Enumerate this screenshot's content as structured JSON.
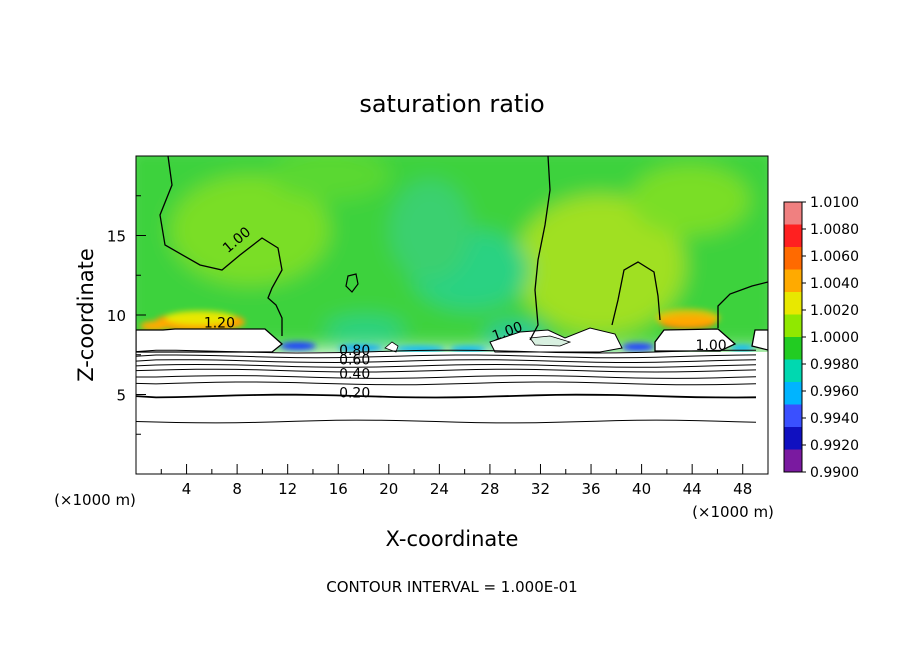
{
  "chart_data": {
    "type": "heatmap",
    "title": "saturation ratio",
    "xlabel": "X-coordinate",
    "ylabel": "Z-coordinate",
    "x_unit_left": "(×1000 m)",
    "x_unit_right": "(×1000 m)",
    "footer": "CONTOUR INTERVAL = 1.000E-01",
    "xlim": [
      0,
      50
    ],
    "ylim": [
      0,
      20
    ],
    "x_ticks": [
      4,
      8,
      12,
      16,
      20,
      24,
      28,
      32,
      36,
      40,
      44,
      48
    ],
    "y_ticks": [
      5,
      10,
      15
    ],
    "colorbar": {
      "labels": [
        "1.0100",
        "1.0080",
        "1.0060",
        "1.0040",
        "1.0020",
        "1.0000",
        "0.9980",
        "0.9960",
        "0.9940",
        "0.9920",
        "0.9900"
      ],
      "colors": [
        "#f08080",
        "#ff2020",
        "#ff6a00",
        "#ffaa00",
        "#e8e800",
        "#90e800",
        "#22cc22",
        "#00d8b0",
        "#00b4ff",
        "#3a50ff",
        "#1010c0",
        "#7a1aa0"
      ]
    },
    "contour_labels": [
      {
        "text": "1.00",
        "x": 8.2,
        "z": 14.5,
        "angle": -40
      },
      {
        "text": "1.20",
        "x": 6.6,
        "z": 9.2,
        "angle": 0
      },
      {
        "text": "1.00",
        "x": 29.5,
        "z": 8.7,
        "angle": -20
      },
      {
        "text": "1.00",
        "x": 45.5,
        "z": 7.8,
        "angle": 0
      },
      {
        "text": "0.80",
        "x": 17.3,
        "z": 7.5,
        "angle": 0
      },
      {
        "text": "0.60",
        "x": 17.3,
        "z": 6.9,
        "angle": 0
      },
      {
        "text": "0.40",
        "x": 17.3,
        "z": 6.0,
        "angle": 0
      },
      {
        "text": "0.20",
        "x": 17.3,
        "z": 4.8,
        "angle": 0
      }
    ],
    "lower_contours": [
      {
        "z": 3.3,
        "bold": false
      },
      {
        "z": 4.9,
        "bold": true
      },
      {
        "z": 5.7,
        "bold": false
      },
      {
        "z": 6.1,
        "bold": false
      },
      {
        "z": 6.5,
        "bold": false
      },
      {
        "z": 6.8,
        "bold": false
      },
      {
        "z": 7.1,
        "bold": false
      },
      {
        "z": 7.4,
        "bold": false
      },
      {
        "z": 7.7,
        "bold": false
      }
    ]
  }
}
